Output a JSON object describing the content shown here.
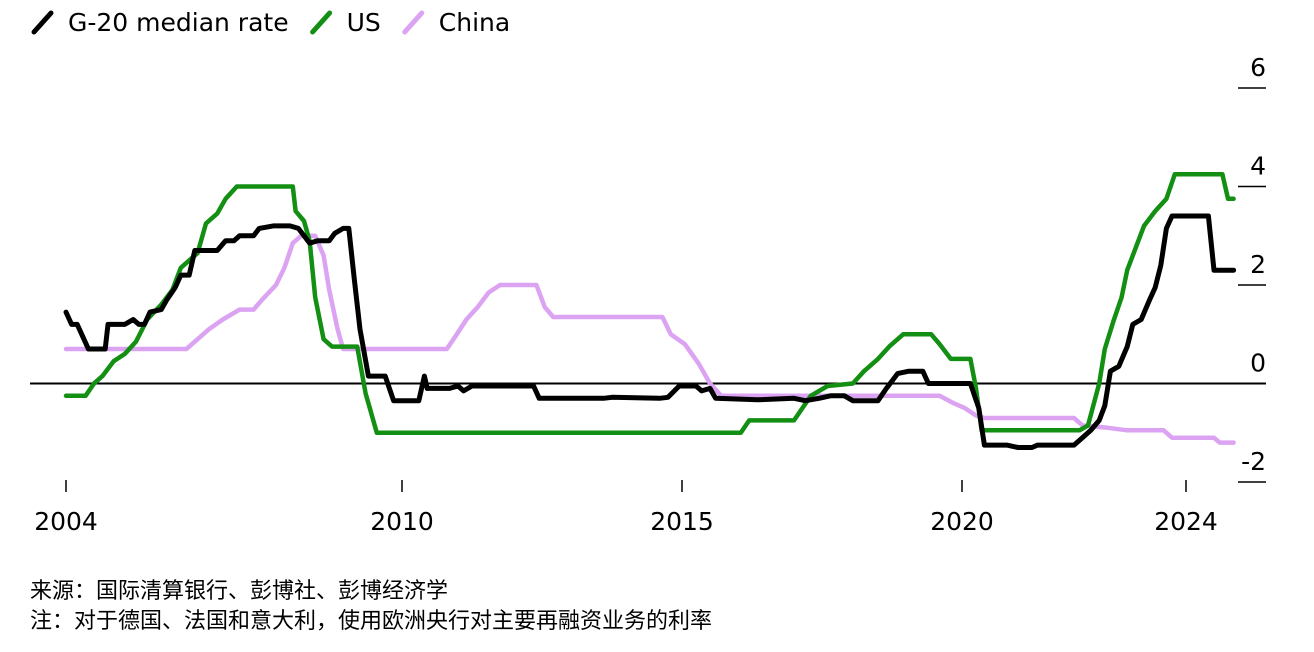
{
  "chart_data": {
    "type": "line",
    "legend_position": "top-left",
    "legend_marker": "slash",
    "xlim": [
      2004,
      2024
    ],
    "ylim": [
      -2,
      6
    ],
    "x_ticks": [
      2004,
      2010,
      2015,
      2020,
      2024
    ],
    "y_ticks": [
      6,
      4,
      2,
      0,
      -2
    ],
    "y_axis_side": "right",
    "zero_line": true,
    "grid": false,
    "series": [
      {
        "name": "G-20 median rate",
        "color": "#000000",
        "points": [
          [
            2004.0,
            1.45
          ],
          [
            2004.1,
            1.2
          ],
          [
            2004.2,
            1.2
          ],
          [
            2004.3,
            0.95
          ],
          [
            2004.4,
            0.7
          ],
          [
            2004.7,
            0.7
          ],
          [
            2004.75,
            1.2
          ],
          [
            2005.05,
            1.2
          ],
          [
            2005.2,
            1.3
          ],
          [
            2005.3,
            1.2
          ],
          [
            2005.4,
            1.2
          ],
          [
            2005.5,
            1.45
          ],
          [
            2005.7,
            1.5
          ],
          [
            2005.8,
            1.7
          ],
          [
            2005.95,
            1.95
          ],
          [
            2006.05,
            2.2
          ],
          [
            2006.2,
            2.2
          ],
          [
            2006.3,
            2.7
          ],
          [
            2006.7,
            2.7
          ],
          [
            2006.85,
            2.9
          ],
          [
            2007.0,
            2.9
          ],
          [
            2007.1,
            3.0
          ],
          [
            2007.35,
            3.0
          ],
          [
            2007.45,
            3.15
          ],
          [
            2007.7,
            3.2
          ],
          [
            2008.0,
            3.2
          ],
          [
            2008.15,
            3.15
          ],
          [
            2008.35,
            2.85
          ],
          [
            2008.5,
            2.9
          ],
          [
            2008.7,
            2.9
          ],
          [
            2008.8,
            3.05
          ],
          [
            2008.95,
            3.15
          ],
          [
            2009.05,
            3.15
          ],
          [
            2009.15,
            2.1
          ],
          [
            2009.25,
            1.1
          ],
          [
            2009.4,
            0.15
          ],
          [
            2009.7,
            0.15
          ],
          [
            2009.85,
            -0.35
          ],
          [
            2010.3,
            -0.35
          ],
          [
            2010.4,
            0.15
          ],
          [
            2010.45,
            -0.1
          ],
          [
            2010.85,
            -0.1
          ],
          [
            2011.0,
            -0.05
          ],
          [
            2011.1,
            -0.15
          ],
          [
            2011.25,
            -0.05
          ],
          [
            2012.35,
            -0.05
          ],
          [
            2012.45,
            -0.3
          ],
          [
            2013.6,
            -0.3
          ],
          [
            2013.75,
            -0.28
          ],
          [
            2014.6,
            -0.3
          ],
          [
            2014.75,
            -0.28
          ],
          [
            2014.95,
            -0.05
          ],
          [
            2015.25,
            -0.05
          ],
          [
            2015.35,
            -0.15
          ],
          [
            2015.5,
            -0.1
          ],
          [
            2015.6,
            -0.3
          ],
          [
            2016.35,
            -0.33
          ],
          [
            2017.0,
            -0.3
          ],
          [
            2017.2,
            -0.35
          ],
          [
            2017.45,
            -0.3
          ],
          [
            2017.65,
            -0.25
          ],
          [
            2017.9,
            -0.25
          ],
          [
            2018.05,
            -0.35
          ],
          [
            2018.5,
            -0.35
          ],
          [
            2018.65,
            -0.1
          ],
          [
            2018.85,
            0.2
          ],
          [
            2019.05,
            0.25
          ],
          [
            2019.3,
            0.25
          ],
          [
            2019.4,
            0.0
          ],
          [
            2020.15,
            0.0
          ],
          [
            2020.3,
            -0.5
          ],
          [
            2020.4,
            -1.25
          ],
          [
            2020.8,
            -1.25
          ],
          [
            2021.0,
            -1.3
          ],
          [
            2021.25,
            -1.3
          ],
          [
            2021.35,
            -1.25
          ],
          [
            2022.0,
            -1.25
          ],
          [
            2022.15,
            -1.1
          ],
          [
            2022.3,
            -0.95
          ],
          [
            2022.45,
            -0.75
          ],
          [
            2022.55,
            -0.45
          ],
          [
            2022.65,
            0.25
          ],
          [
            2022.8,
            0.35
          ],
          [
            2022.95,
            0.75
          ],
          [
            2023.05,
            1.2
          ],
          [
            2023.2,
            1.3
          ],
          [
            2023.35,
            1.7
          ],
          [
            2023.45,
            1.95
          ],
          [
            2023.55,
            2.4
          ],
          [
            2023.65,
            3.15
          ],
          [
            2023.75,
            3.4
          ],
          [
            2024.4,
            3.4
          ],
          [
            2024.5,
            2.3
          ],
          [
            2024.85,
            2.3
          ]
        ]
      },
      {
        "name": "US",
        "color": "#138f13",
        "points": [
          [
            2004.0,
            -0.25
          ],
          [
            2004.35,
            -0.25
          ],
          [
            2004.5,
            0.0
          ],
          [
            2004.65,
            0.15
          ],
          [
            2004.85,
            0.45
          ],
          [
            2005.05,
            0.6
          ],
          [
            2005.25,
            0.85
          ],
          [
            2005.45,
            1.3
          ],
          [
            2005.7,
            1.6
          ],
          [
            2005.9,
            1.9
          ],
          [
            2006.05,
            2.35
          ],
          [
            2006.35,
            2.65
          ],
          [
            2006.5,
            3.25
          ],
          [
            2006.7,
            3.45
          ],
          [
            2006.85,
            3.75
          ],
          [
            2007.05,
            4.0
          ],
          [
            2008.05,
            4.0
          ],
          [
            2008.1,
            3.5
          ],
          [
            2008.25,
            3.3
          ],
          [
            2008.35,
            2.9
          ],
          [
            2008.45,
            1.75
          ],
          [
            2008.6,
            0.9
          ],
          [
            2008.75,
            0.75
          ],
          [
            2009.2,
            0.75
          ],
          [
            2009.35,
            -0.2
          ],
          [
            2009.55,
            -1.0
          ],
          [
            2016.05,
            -1.0
          ],
          [
            2016.2,
            -0.75
          ],
          [
            2017.0,
            -0.75
          ],
          [
            2017.15,
            -0.5
          ],
          [
            2017.3,
            -0.25
          ],
          [
            2017.6,
            -0.05
          ],
          [
            2018.05,
            0.0
          ],
          [
            2018.25,
            0.25
          ],
          [
            2018.5,
            0.5
          ],
          [
            2018.7,
            0.75
          ],
          [
            2018.95,
            1.0
          ],
          [
            2019.45,
            1.0
          ],
          [
            2019.6,
            0.8
          ],
          [
            2019.8,
            0.5
          ],
          [
            2020.15,
            0.5
          ],
          [
            2020.25,
            -0.1
          ],
          [
            2020.35,
            -0.95
          ],
          [
            2022.1,
            -0.95
          ],
          [
            2022.25,
            -0.85
          ],
          [
            2022.45,
            0.0
          ],
          [
            2022.55,
            0.7
          ],
          [
            2022.7,
            1.25
          ],
          [
            2022.85,
            1.75
          ],
          [
            2022.95,
            2.3
          ],
          [
            2023.1,
            2.75
          ],
          [
            2023.25,
            3.2
          ],
          [
            2023.45,
            3.5
          ],
          [
            2023.65,
            3.75
          ],
          [
            2023.8,
            4.25
          ],
          [
            2024.65,
            4.25
          ],
          [
            2024.75,
            3.75
          ],
          [
            2024.85,
            3.75
          ]
        ]
      },
      {
        "name": "China",
        "color": "#dba3f2",
        "points": [
          [
            2004.0,
            0.7
          ],
          [
            2006.15,
            0.7
          ],
          [
            2006.35,
            0.9
          ],
          [
            2006.55,
            1.1
          ],
          [
            2006.8,
            1.3
          ],
          [
            2007.1,
            1.5
          ],
          [
            2007.35,
            1.5
          ],
          [
            2007.5,
            1.7
          ],
          [
            2007.75,
            2.0
          ],
          [
            2007.9,
            2.35
          ],
          [
            2008.05,
            2.85
          ],
          [
            2008.2,
            3.0
          ],
          [
            2008.45,
            3.0
          ],
          [
            2008.6,
            2.6
          ],
          [
            2008.7,
            1.9
          ],
          [
            2008.85,
            1.1
          ],
          [
            2008.95,
            0.7
          ],
          [
            2010.8,
            0.7
          ],
          [
            2010.95,
            0.95
          ],
          [
            2011.15,
            1.3
          ],
          [
            2011.35,
            1.55
          ],
          [
            2011.55,
            1.85
          ],
          [
            2011.75,
            2.0
          ],
          [
            2012.4,
            2.0
          ],
          [
            2012.55,
            1.55
          ],
          [
            2012.7,
            1.35
          ],
          [
            2014.65,
            1.35
          ],
          [
            2014.8,
            1.0
          ],
          [
            2015.05,
            0.8
          ],
          [
            2015.3,
            0.4
          ],
          [
            2015.5,
            0.0
          ],
          [
            2015.7,
            -0.25
          ],
          [
            2019.6,
            -0.25
          ],
          [
            2019.85,
            -0.4
          ],
          [
            2020.05,
            -0.5
          ],
          [
            2020.25,
            -0.65
          ],
          [
            2020.4,
            -0.7
          ],
          [
            2022.0,
            -0.7
          ],
          [
            2022.15,
            -0.85
          ],
          [
            2022.6,
            -0.9
          ],
          [
            2022.95,
            -0.95
          ],
          [
            2023.6,
            -0.95
          ],
          [
            2023.75,
            -1.1
          ],
          [
            2024.5,
            -1.1
          ],
          [
            2024.6,
            -1.2
          ],
          [
            2024.85,
            -1.2
          ]
        ]
      }
    ]
  },
  "footnotes": {
    "source": "来源：国际清算银行、彭博社、彭博经济学",
    "note": "注：对于德国、法国和意大利，使用欧洲央行对主要再融资业务的利率"
  }
}
